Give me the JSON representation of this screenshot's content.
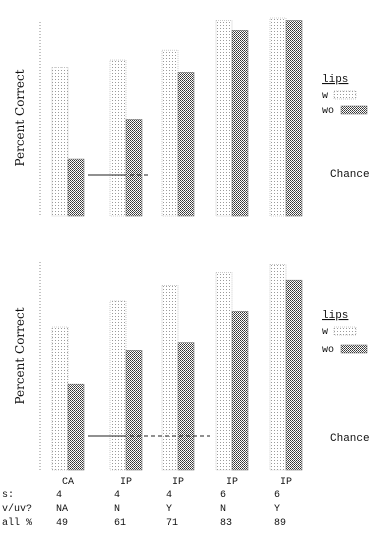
{
  "chart_data": [
    {
      "type": "bar",
      "ylabel": "Percent Correct",
      "legend_title": "lips",
      "legend_placement": "right",
      "series": [
        {
          "name": "w",
          "values": [
            60,
            63,
            67,
            79,
            80
          ]
        },
        {
          "name": "wo",
          "values": [
            23,
            39,
            58,
            75,
            79
          ]
        }
      ],
      "chance_label": "Chance",
      "ylim": [
        0,
        80
      ]
    },
    {
      "type": "bar",
      "ylabel": "Percent Correct",
      "legend_title": "lips",
      "legend_placement": "right",
      "categories": [
        "CA",
        "IP",
        "IP",
        "IP",
        "IP"
      ],
      "series": [
        {
          "name": "w",
          "values": [
            55,
            65,
            71,
            76,
            79
          ]
        },
        {
          "name": "wo",
          "values": [
            33,
            46,
            49,
            61,
            73
          ]
        }
      ],
      "chance_label": "Chance",
      "ylim": [
        0,
        80
      ]
    }
  ],
  "table": {
    "row_labels": [
      "s:",
      "v/uv?",
      "all %"
    ],
    "rows": [
      [
        "4",
        "4",
        "4",
        "6",
        "6"
      ],
      [
        "NA",
        "N",
        "Y",
        "N",
        "Y"
      ],
      [
        "49",
        "61",
        "71",
        "83",
        "89"
      ]
    ]
  }
}
